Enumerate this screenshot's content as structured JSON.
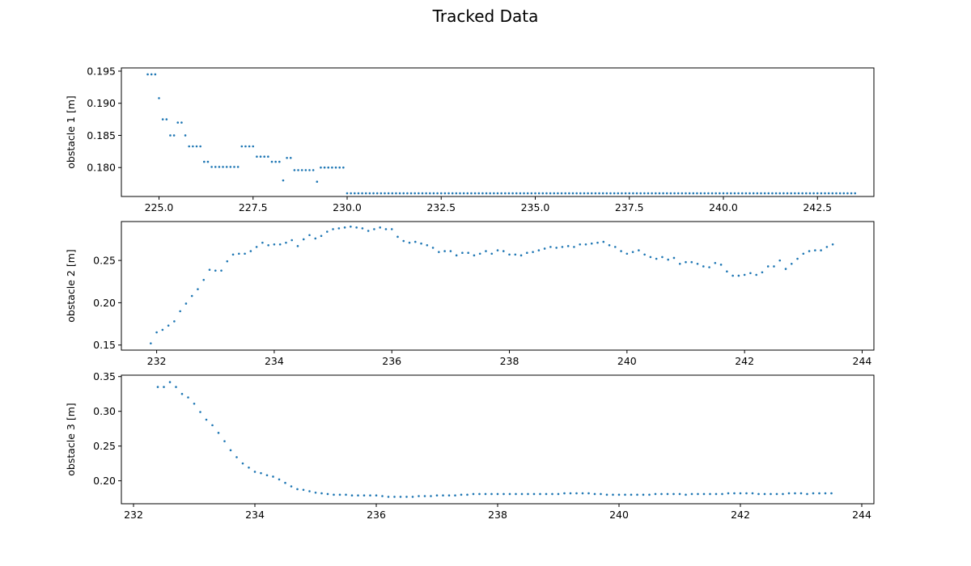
{
  "figure": {
    "title": "Tracked Data"
  },
  "colors": {
    "marker": "#1f77b4"
  },
  "chart_data": [
    {
      "type": "scatter",
      "ylabel": "obstacle 1 [m]",
      "xlim": [
        224.0,
        244.0
      ],
      "ylim": [
        0.1755,
        0.1955
      ],
      "xticks": [
        225.0,
        227.5,
        230.0,
        232.5,
        235.0,
        237.5,
        240.0,
        242.5
      ],
      "xtick_labels": [
        "225.0",
        "227.5",
        "230.0",
        "232.5",
        "235.0",
        "237.5",
        "240.0",
        "242.5"
      ],
      "yticks": [
        0.18,
        0.185,
        0.19,
        0.195
      ],
      "ytick_labels": [
        "0.180",
        "0.185",
        "0.190",
        "0.195"
      ],
      "x": [
        224.7,
        224.8,
        224.9,
        225.0,
        225.1,
        225.2,
        225.3,
        225.4,
        225.5,
        225.6,
        225.7,
        225.8,
        225.9,
        226.0,
        226.1,
        226.2,
        226.3,
        226.4,
        226.5,
        226.6,
        226.7,
        226.8,
        226.9,
        227.0,
        227.1,
        227.2,
        227.3,
        227.4,
        227.5,
        227.6,
        227.7,
        227.8,
        227.9,
        228.0,
        228.1,
        228.2,
        228.3,
        228.4,
        228.5,
        228.6,
        228.7,
        228.8,
        228.9,
        229.0,
        229.1,
        229.2,
        229.3,
        229.4,
        229.5,
        229.6,
        229.7,
        229.8,
        229.9,
        230.0
      ],
      "y": [
        0.1945,
        0.1945,
        0.1945,
        0.1908,
        0.1875,
        0.1875,
        0.185,
        0.185,
        0.187,
        0.187,
        0.185,
        0.1833,
        0.1833,
        0.1833,
        0.1833,
        0.1809,
        0.1809,
        0.1801,
        0.1801,
        0.1801,
        0.1801,
        0.1801,
        0.1801,
        0.1801,
        0.1801,
        0.1833,
        0.1833,
        0.1833,
        0.1833,
        0.1817,
        0.1817,
        0.1817,
        0.1817,
        0.1809,
        0.1809,
        0.1809,
        0.178,
        0.1815,
        0.1815,
        0.1796,
        0.1796,
        0.1796,
        0.1796,
        0.1796,
        0.1796,
        0.1778,
        0.18,
        0.18,
        0.18,
        0.18,
        0.18,
        0.18,
        0.18,
        0.176
      ],
      "series_flat": {
        "x_start": 230.1,
        "x_end": 243.5,
        "x_step": 0.1,
        "y": 0.176
      }
    },
    {
      "type": "scatter",
      "ylabel": "obstacle 2 [m]",
      "xlim": [
        231.4,
        244.2
      ],
      "ylim": [
        0.144,
        0.296
      ],
      "xticks": [
        232,
        234,
        236,
        238,
        240,
        242,
        244
      ],
      "xtick_labels": [
        "232",
        "234",
        "236",
        "238",
        "240",
        "242",
        "244"
      ],
      "yticks": [
        0.15,
        0.2,
        0.25
      ],
      "ytick_labels": [
        "0.15",
        "0.20",
        "0.25"
      ],
      "x": [
        231.9,
        232.0,
        232.1,
        232.2,
        232.3,
        232.4,
        232.5,
        232.6,
        232.7,
        232.8,
        232.9,
        233.0,
        233.1,
        233.2,
        233.3,
        233.4,
        233.5,
        233.6,
        233.7,
        233.8,
        233.9,
        234.0,
        234.1,
        234.2,
        234.3,
        234.4,
        234.5,
        234.6,
        234.7,
        234.8,
        234.9,
        235.0,
        235.1,
        235.2,
        235.3,
        235.4,
        235.5,
        235.6,
        235.7,
        235.8,
        235.9,
        236.0,
        236.1,
        236.2,
        236.3,
        236.4,
        236.5,
        236.6,
        236.7,
        236.8,
        236.9,
        237.0,
        237.1,
        237.2,
        237.3,
        237.4,
        237.5,
        237.6,
        237.7,
        237.8,
        237.9,
        238.0,
        238.1,
        238.2,
        238.3,
        238.4,
        238.5,
        238.6,
        238.7,
        238.8,
        238.9,
        239.0,
        239.1,
        239.2,
        239.3,
        239.4,
        239.5,
        239.6,
        239.7,
        239.8,
        239.9,
        240.0,
        240.1,
        240.2,
        240.3,
        240.4,
        240.5,
        240.6,
        240.7,
        240.8,
        240.9,
        241.0,
        241.1,
        241.2,
        241.3,
        241.4,
        241.5,
        241.6,
        241.7,
        241.8,
        241.9,
        242.0,
        242.1,
        242.2,
        242.3,
        242.4,
        242.5,
        242.6,
        242.7,
        242.8,
        242.9,
        243.0,
        243.1,
        243.2,
        243.3,
        243.4,
        243.5
      ],
      "y": [
        0.152,
        0.165,
        0.168,
        0.173,
        0.178,
        0.19,
        0.199,
        0.208,
        0.216,
        0.227,
        0.239,
        0.238,
        0.238,
        0.249,
        0.257,
        0.258,
        0.258,
        0.261,
        0.266,
        0.271,
        0.268,
        0.269,
        0.269,
        0.271,
        0.274,
        0.267,
        0.275,
        0.28,
        0.276,
        0.279,
        0.284,
        0.287,
        0.288,
        0.289,
        0.29,
        0.289,
        0.288,
        0.285,
        0.287,
        0.289,
        0.287,
        0.287,
        0.278,
        0.273,
        0.271,
        0.272,
        0.27,
        0.268,
        0.265,
        0.26,
        0.261,
        0.261,
        0.256,
        0.259,
        0.259,
        0.256,
        0.258,
        0.261,
        0.258,
        0.262,
        0.261,
        0.257,
        0.257,
        0.256,
        0.259,
        0.26,
        0.262,
        0.264,
        0.266,
        0.265,
        0.266,
        0.267,
        0.266,
        0.269,
        0.269,
        0.27,
        0.271,
        0.272,
        0.268,
        0.266,
        0.261,
        0.258,
        0.26,
        0.262,
        0.257,
        0.254,
        0.252,
        0.254,
        0.251,
        0.253,
        0.246,
        0.248,
        0.248,
        0.246,
        0.243,
        0.242,
        0.247,
        0.245,
        0.237,
        0.232,
        0.232,
        0.233,
        0.235,
        0.233,
        0.236,
        0.243,
        0.243,
        0.25,
        0.24,
        0.246,
        0.252,
        0.258,
        0.261,
        0.262,
        0.262,
        0.266,
        0.269
      ]
    },
    {
      "type": "scatter",
      "ylabel": "obstacle 3 [m]",
      "xlim": [
        231.8,
        244.2
      ],
      "ylim": [
        0.167,
        0.352
      ],
      "xticks": [
        232,
        234,
        236,
        238,
        240,
        242,
        244
      ],
      "xtick_labels": [
        "232",
        "234",
        "236",
        "238",
        "240",
        "242",
        "244"
      ],
      "yticks": [
        0.2,
        0.25,
        0.3,
        0.35
      ],
      "ytick_labels": [
        "0.20",
        "0.25",
        "0.30",
        "0.35"
      ],
      "x": [
        232.4,
        232.5,
        232.6,
        232.7,
        232.8,
        232.9,
        233.0,
        233.1,
        233.2,
        233.3,
        233.4,
        233.5,
        233.6,
        233.7,
        233.8,
        233.9,
        234.0,
        234.1,
        234.2,
        234.3,
        234.4,
        234.5,
        234.6,
        234.7,
        234.8,
        234.9,
        235.0,
        235.1,
        235.2,
        235.3,
        235.4,
        235.5,
        235.6,
        235.7,
        235.8,
        235.9,
        236.0,
        236.1,
        236.2,
        236.3,
        236.4,
        236.5,
        236.6,
        236.7,
        236.8,
        236.9,
        237.0,
        237.1,
        237.2,
        237.3,
        237.4,
        237.5,
        237.6,
        237.7,
        237.8,
        237.9,
        238.0,
        238.1,
        238.2,
        238.3,
        238.4,
        238.5,
        238.6,
        238.7,
        238.8,
        238.9,
        239.0,
        239.1,
        239.2,
        239.3,
        239.4,
        239.5,
        239.6,
        239.7,
        239.8,
        239.9,
        240.0,
        240.1,
        240.2,
        240.3,
        240.4,
        240.5,
        240.6,
        240.7,
        240.8,
        240.9,
        241.0,
        241.1,
        241.2,
        241.3,
        241.4,
        241.5,
        241.6,
        241.7,
        241.8,
        241.9,
        242.0,
        242.1,
        242.2,
        242.3,
        242.4,
        242.5,
        242.6,
        242.7,
        242.8,
        242.9,
        243.0,
        243.1,
        243.2,
        243.3,
        243.4,
        243.5
      ],
      "y": [
        0.335,
        0.335,
        0.342,
        0.335,
        0.325,
        0.32,
        0.311,
        0.299,
        0.288,
        0.28,
        0.269,
        0.257,
        0.244,
        0.234,
        0.225,
        0.219,
        0.213,
        0.211,
        0.208,
        0.206,
        0.202,
        0.197,
        0.192,
        0.188,
        0.187,
        0.185,
        0.183,
        0.182,
        0.181,
        0.18,
        0.18,
        0.18,
        0.179,
        0.179,
        0.179,
        0.179,
        0.179,
        0.178,
        0.177,
        0.177,
        0.177,
        0.177,
        0.177,
        0.178,
        0.178,
        0.178,
        0.179,
        0.179,
        0.179,
        0.179,
        0.18,
        0.18,
        0.181,
        0.181,
        0.181,
        0.181,
        0.181,
        0.181,
        0.181,
        0.181,
        0.181,
        0.181,
        0.181,
        0.181,
        0.181,
        0.181,
        0.181,
        0.182,
        0.182,
        0.182,
        0.182,
        0.182,
        0.181,
        0.181,
        0.18,
        0.18,
        0.18,
        0.18,
        0.18,
        0.18,
        0.18,
        0.18,
        0.181,
        0.181,
        0.181,
        0.181,
        0.181,
        0.18,
        0.181,
        0.181,
        0.181,
        0.181,
        0.181,
        0.181,
        0.182,
        0.182,
        0.182,
        0.182,
        0.182,
        0.181,
        0.181,
        0.181,
        0.181,
        0.181,
        0.182,
        0.182,
        0.182,
        0.181,
        0.182,
        0.182,
        0.182,
        0.182
      ]
    }
  ]
}
